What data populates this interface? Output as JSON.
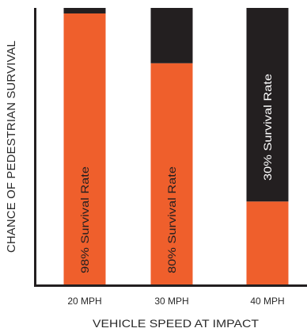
{
  "chart_data": {
    "type": "bar",
    "stacked": true,
    "categories": [
      "20 MPH",
      "30 MPH",
      "40 MPH"
    ],
    "series": [
      {
        "values": [
          98,
          80,
          30
        ],
        "color": "#ef5f2c"
      },
      {
        "values": [
          2,
          20,
          70
        ],
        "color": "#231f20"
      }
    ],
    "bar_labels": [
      "98% Survival Rate",
      "80% Survival Rate",
      "30% Survival Rate"
    ],
    "bar_label_colors": [
      "#231f20",
      "#231f20",
      "#ffffff"
    ],
    "xlabel": "VEHICLE SPEED AT IMPACT",
    "ylabel": "CHANCE OF PEDESTRIAN SURVIVAL",
    "ylim": [
      0,
      100
    ],
    "grid": false
  }
}
